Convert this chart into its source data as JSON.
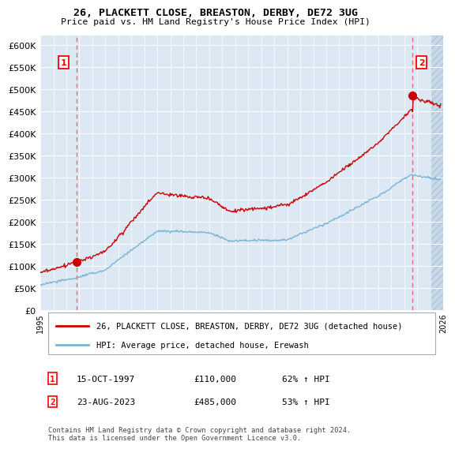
{
  "title": "26, PLACKETT CLOSE, BREASTON, DERBY, DE72 3UG",
  "subtitle": "Price paid vs. HM Land Registry's House Price Index (HPI)",
  "legend_line1": "26, PLACKETT CLOSE, BREASTON, DERBY, DE72 3UG (detached house)",
  "legend_line2": "HPI: Average price, detached house, Erewash",
  "annotation1_label": "1",
  "annotation1_date": "15-OCT-1997",
  "annotation1_price": "£110,000",
  "annotation1_hpi": "62% ↑ HPI",
  "annotation2_label": "2",
  "annotation2_date": "23-AUG-2023",
  "annotation2_price": "£485,000",
  "annotation2_hpi": "53% ↑ HPI",
  "footnote": "Contains HM Land Registry data © Crown copyright and database right 2024.\nThis data is licensed under the Open Government Licence v3.0.",
  "sale1_year": 1997.79,
  "sale1_price": 110000,
  "sale2_year": 2023.64,
  "sale2_price": 485000,
  "hpi_color": "#7ab3d4",
  "price_color": "#cc0000",
  "sale_dot_color": "#cc0000",
  "background_color": "#dce9f5",
  "hatch_color": "#c8d8e8",
  "grid_color": "#ffffff",
  "ylim_max": 620000,
  "ylim_min": 0,
  "xlim_min": 1995,
  "xlim_max": 2026
}
